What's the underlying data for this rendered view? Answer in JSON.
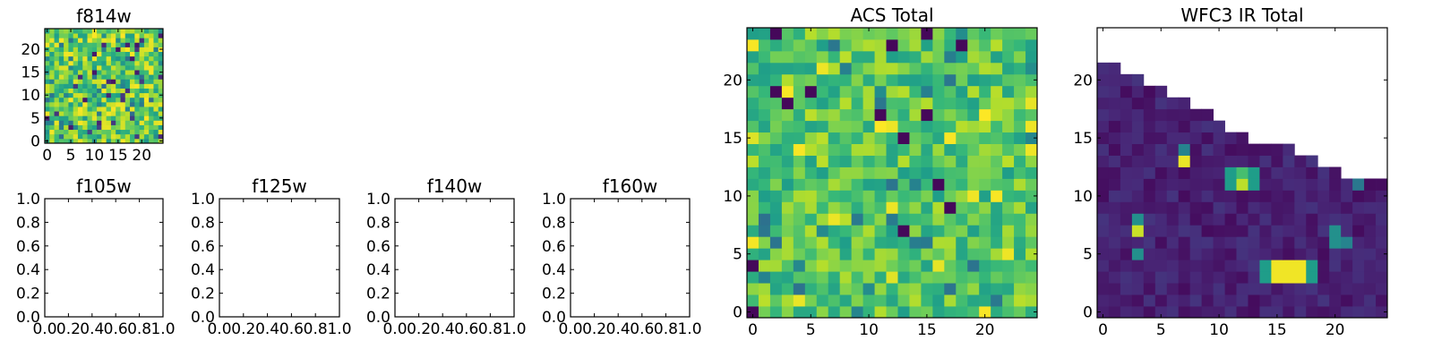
{
  "chart_data": [
    {
      "type": "heatmap",
      "title": "f814w",
      "grid_size": [
        25,
        25
      ],
      "xlim": [
        0,
        25
      ],
      "ylim": [
        0,
        25
      ],
      "xticks": [
        0,
        5,
        10,
        15,
        20
      ],
      "yticks": [
        0,
        5,
        10,
        15,
        20
      ],
      "colormap": "viridis",
      "description_of_values": "noisy field, mostly mid-to-high values"
    },
    {
      "type": "heatmap",
      "title": "f105w",
      "xlim": [
        0,
        1
      ],
      "ylim": [
        0,
        1
      ],
      "xticks": [
        "0.0",
        "0.2",
        "0.4",
        "0.6",
        "0.8",
        "1.0"
      ],
      "yticks": [
        "0.0",
        "0.2",
        "0.4",
        "0.6",
        "0.8",
        "1.0"
      ],
      "empty": true
    },
    {
      "type": "heatmap",
      "title": "f125w",
      "xlim": [
        0,
        1
      ],
      "ylim": [
        0,
        1
      ],
      "xticks": [
        "0.0",
        "0.2",
        "0.4",
        "0.6",
        "0.8",
        "1.0"
      ],
      "yticks": [
        "0.0",
        "0.2",
        "0.4",
        "0.6",
        "0.8",
        "1.0"
      ],
      "empty": true
    },
    {
      "type": "heatmap",
      "title": "f140w",
      "xlim": [
        0,
        1
      ],
      "ylim": [
        0,
        1
      ],
      "xticks": [
        "0.0",
        "0.2",
        "0.4",
        "0.6",
        "0.8",
        "1.0"
      ],
      "yticks": [
        "0.0",
        "0.2",
        "0.4",
        "0.6",
        "0.8",
        "1.0"
      ],
      "empty": true
    },
    {
      "type": "heatmap",
      "title": "f160w",
      "xlim": [
        0,
        1
      ],
      "ylim": [
        0,
        1
      ],
      "xticks": [
        "0.0",
        "0.2",
        "0.4",
        "0.6",
        "0.8",
        "1.0"
      ],
      "yticks": [
        "0.0",
        "0.2",
        "0.4",
        "0.6",
        "0.8",
        "1.0"
      ],
      "empty": true
    },
    {
      "type": "heatmap",
      "title": "ACS Total",
      "grid_size": [
        25,
        25
      ],
      "xlim": [
        0,
        25
      ],
      "ylim": [
        0,
        25
      ],
      "xticks": [
        0,
        5,
        10,
        15,
        20
      ],
      "yticks": [
        0,
        5,
        10,
        15,
        20
      ],
      "colormap": "viridis"
    },
    {
      "type": "heatmap",
      "title": "WFC3 IR Total",
      "grid_size": [
        25,
        25
      ],
      "xlim": [
        0,
        25
      ],
      "ylim": [
        0,
        25
      ],
      "xticks": [
        0,
        5,
        10,
        15,
        20
      ],
      "yticks": [
        0,
        5,
        10,
        15,
        20
      ],
      "colormap": "viridis",
      "masked_region": "upper-right triangle (no data, white)",
      "bright_sources": [
        {
          "x": 16,
          "y": 4,
          "w": 4,
          "h": 2
        },
        {
          "x": 7,
          "y": 13
        },
        {
          "x": 12,
          "y": 11
        },
        {
          "x": 3,
          "y": 7
        },
        {
          "x": 20,
          "y": 6
        }
      ]
    }
  ]
}
